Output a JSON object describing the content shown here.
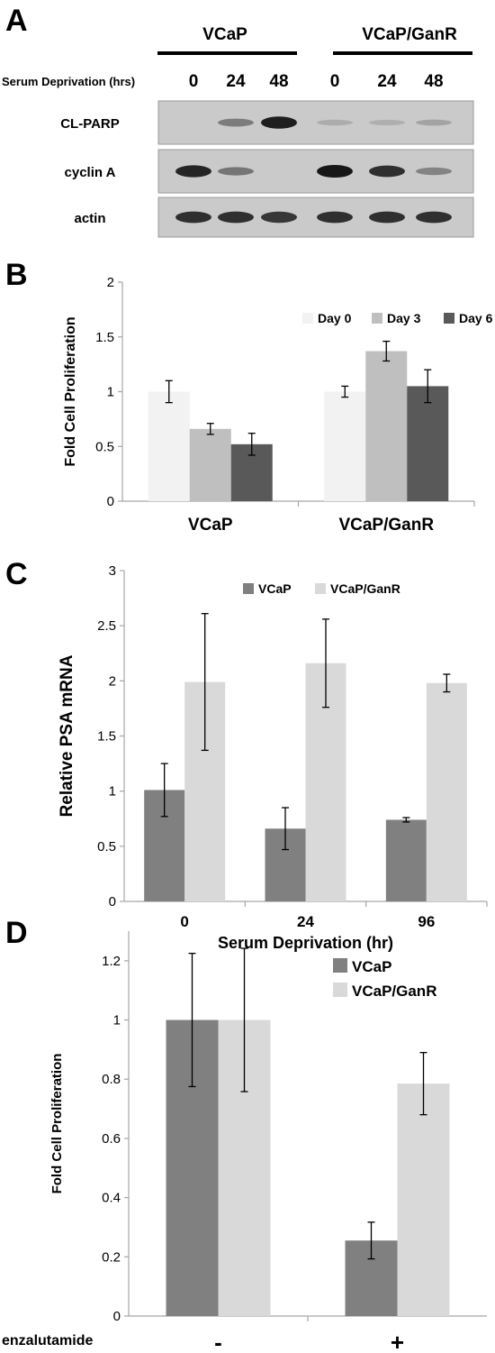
{
  "panel_a": {
    "letter": "A",
    "groups": [
      "VCaP",
      "VCaP/GanR"
    ],
    "row_header": "Serum Deprivation (hrs)",
    "lanes": [
      "0",
      "24",
      "48",
      "0",
      "24",
      "48"
    ],
    "blots": [
      {
        "label": "CL-PARP",
        "intensities": [
          0.0,
          0.35,
          0.95,
          0.05,
          0.03,
          0.1
        ]
      },
      {
        "label": "cyclin A",
        "intensities": [
          0.9,
          0.4,
          0.0,
          1.0,
          0.85,
          0.3
        ]
      },
      {
        "label": "actin",
        "intensities": [
          0.85,
          0.85,
          0.8,
          0.85,
          0.85,
          0.85
        ]
      }
    ]
  },
  "panel_b": {
    "letter": "B"
  },
  "panel_c": {
    "letter": "C"
  },
  "panel_d": {
    "letter": "D"
  },
  "colors": {
    "vcap": "#808080",
    "ganr": "#d9d9d9",
    "day0": "#f2f2f2",
    "day3": "#bfbfbf",
    "day6": "#595959",
    "axis": "#a6a6a6"
  },
  "chart_data": [
    {
      "panel": "B",
      "type": "bar",
      "categories": [
        "VCaP",
        "VCaP/GanR"
      ],
      "series": [
        {
          "name": "Day 0",
          "values": [
            1.0,
            1.0
          ],
          "errors": [
            0.1,
            0.05
          ]
        },
        {
          "name": "Day 3",
          "values": [
            0.66,
            1.37
          ],
          "errors": [
            0.05,
            0.09
          ]
        },
        {
          "name": "Day 6",
          "values": [
            0.52,
            1.05
          ],
          "errors": [
            0.1,
            0.15
          ]
        }
      ],
      "ylabel": "Fold Cell Proliferation",
      "xlabel": "",
      "ylim": [
        0,
        2
      ],
      "yticks": [
        "0",
        "0.5",
        "1",
        "1.5",
        "2"
      ],
      "legend": "top"
    },
    {
      "panel": "C",
      "type": "bar",
      "categories": [
        "0",
        "24",
        "96"
      ],
      "series": [
        {
          "name": "VCaP",
          "values": [
            1.01,
            0.66,
            0.74
          ],
          "errors": [
            0.24,
            0.19,
            0.02
          ]
        },
        {
          "name": "VCaP/GanR",
          "values": [
            1.99,
            2.16,
            1.98
          ],
          "errors": [
            0.62,
            0.4,
            0.08
          ]
        }
      ],
      "ylabel": "Relative PSA mRNA",
      "xlabel": "Serum Deprivation (hr)",
      "ylim": [
        0,
        3
      ],
      "yticks": [
        "0",
        "0.5",
        "1",
        "1.5",
        "2",
        "2.5",
        "3"
      ],
      "legend": "top"
    },
    {
      "panel": "D",
      "type": "bar",
      "categories": [
        "-",
        "+"
      ],
      "series": [
        {
          "name": "VCaP",
          "values": [
            1.0,
            0.255
          ],
          "errors": [
            0.225,
            0.062
          ]
        },
        {
          "name": "VCaP/GanR",
          "values": [
            1.0,
            0.785
          ],
          "errors": [
            0.242,
            0.105
          ]
        }
      ],
      "ylabel": "Fold Cell Proliferation",
      "xlabel": "enzalutamide",
      "ylim": [
        0,
        1.3
      ],
      "yticks": [
        "0",
        "0.2",
        "0.4",
        "0.6",
        "0.8",
        "1",
        "1.2"
      ],
      "legend": "top-right"
    }
  ]
}
